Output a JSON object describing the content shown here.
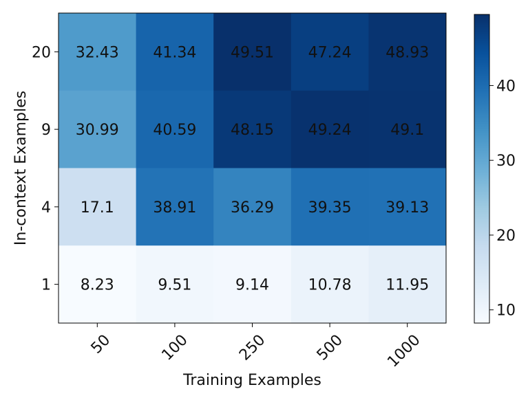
{
  "chart_data": {
    "type": "heatmap",
    "title": "",
    "xlabel": "Training Examples",
    "ylabel": "In-context Examples",
    "x_categories": [
      "50",
      "100",
      "250",
      "500",
      "1000"
    ],
    "y_categories": [
      "20",
      "9",
      "4",
      "1"
    ],
    "values": [
      [
        32.43,
        41.34,
        49.51,
        47.24,
        48.93
      ],
      [
        30.99,
        40.59,
        48.15,
        49.24,
        49.1
      ],
      [
        17.1,
        38.91,
        36.29,
        39.35,
        39.13
      ],
      [
        8.23,
        9.51,
        9.14,
        10.78,
        11.95
      ]
    ],
    "value_labels": [
      [
        "32.43",
        "41.34",
        "49.51",
        "47.24",
        "48.93"
      ],
      [
        "30.99",
        "40.59",
        "48.15",
        "49.24",
        "49.1"
      ],
      [
        "17.1",
        "38.91",
        "36.29",
        "39.35",
        "39.13"
      ],
      [
        "8.23",
        "9.51",
        "9.14",
        "10.78",
        "11.95"
      ]
    ],
    "colorbar": {
      "range": [
        8.23,
        49.51
      ],
      "ticks": [
        10,
        20,
        30,
        40
      ],
      "tick_labels": [
        "10",
        "20",
        "30",
        "40"
      ],
      "colormap": "Blues",
      "placement": "right"
    },
    "grid": false
  }
}
